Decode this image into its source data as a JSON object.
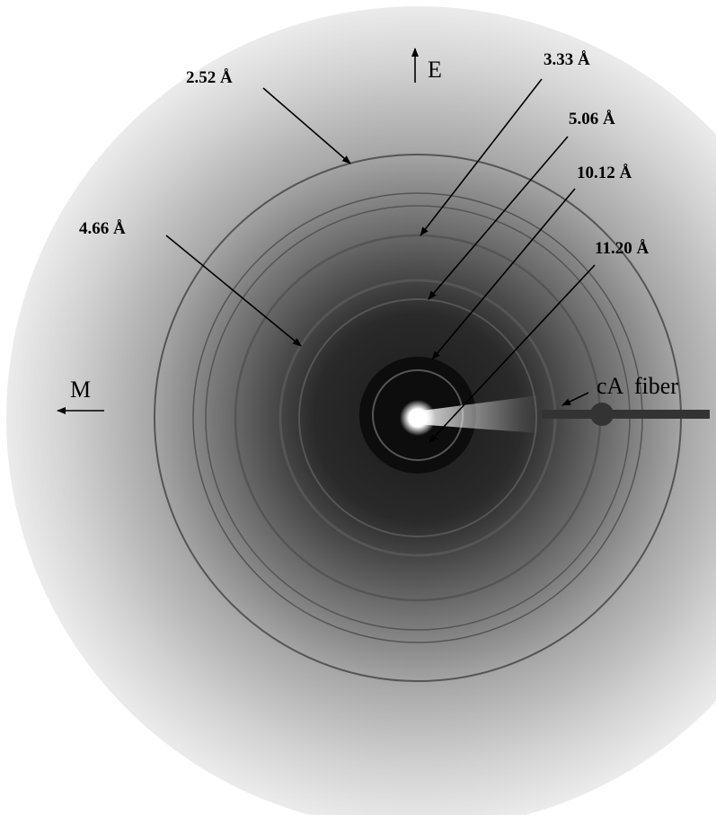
{
  "reflections": [
    {
      "label": "2.52 Å"
    },
    {
      "label": "3.33 Å"
    },
    {
      "label": "5.06 Å"
    },
    {
      "label": "10.12 Å"
    },
    {
      "label": "11.20 Å"
    },
    {
      "label": "4.66 Å"
    }
  ],
  "directions": {
    "equator": "E",
    "meridian": "M"
  },
  "sample": {
    "label": "cA  fiber"
  }
}
